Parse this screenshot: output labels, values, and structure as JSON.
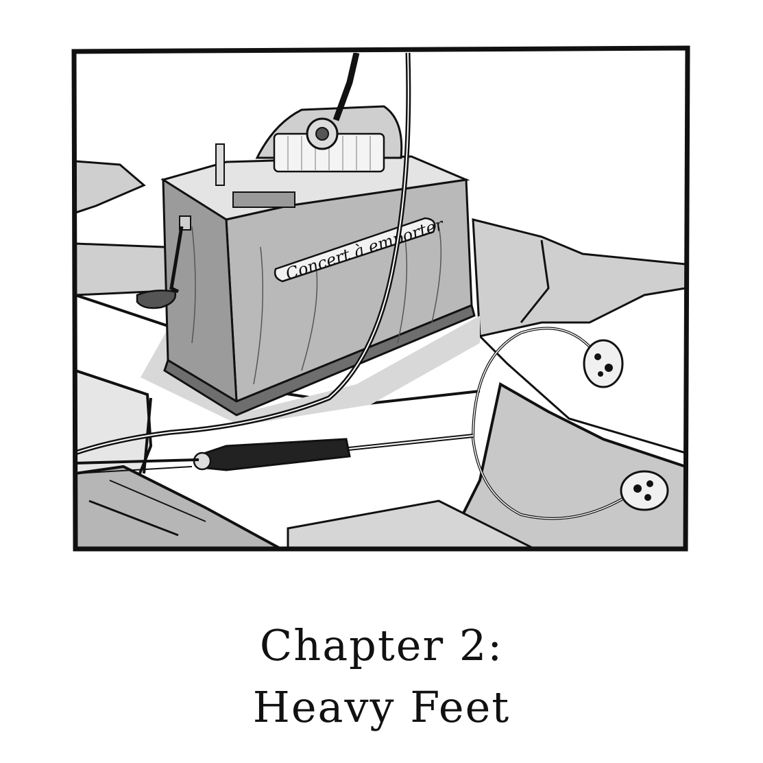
{
  "caption": {
    "line1": "Chapter 2:",
    "line2": "Heavy Feet"
  },
  "illustration": {
    "plate_text": "Concert à emporter"
  },
  "colors": {
    "ink": "#111111",
    "gray_light": "#d3d3d3",
    "gray_mid": "#b4b4b4",
    "gray_dark": "#8f8f8f",
    "paper": "#ffffff"
  }
}
